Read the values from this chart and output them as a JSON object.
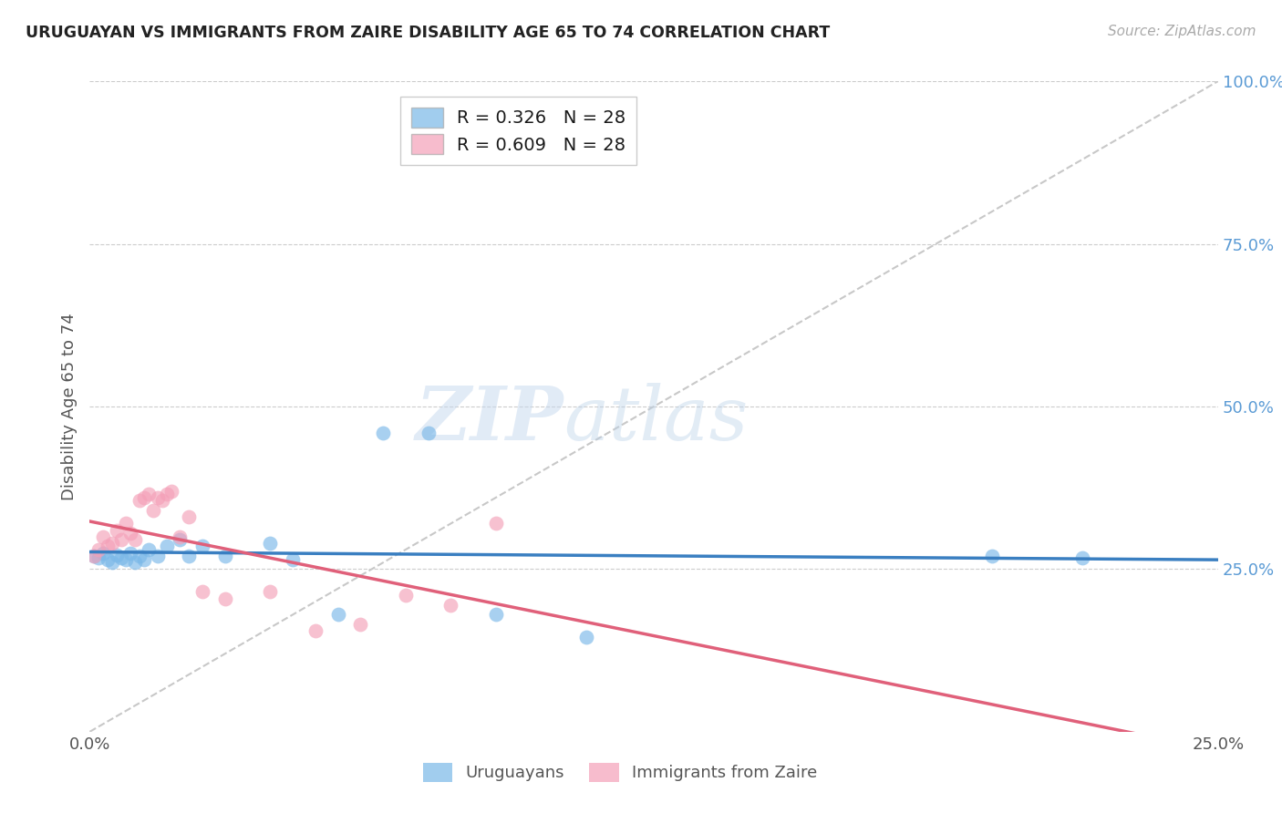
{
  "title": "URUGUAYAN VS IMMIGRANTS FROM ZAIRE DISABILITY AGE 65 TO 74 CORRELATION CHART",
  "source": "Source: ZipAtlas.com",
  "ylabel": "Disability Age 65 to 74",
  "x_min": 0.0,
  "x_max": 0.25,
  "y_min": 0.0,
  "y_max": 1.0,
  "x_tick_positions": [
    0.0,
    0.05,
    0.1,
    0.15,
    0.2,
    0.25
  ],
  "x_tick_labels": [
    "0.0%",
    "",
    "",
    "",
    "",
    "25.0%"
  ],
  "y_tick_positions": [
    0.25,
    0.5,
    0.75,
    1.0
  ],
  "y_tick_labels": [
    "25.0%",
    "50.0%",
    "75.0%",
    "100.0%"
  ],
  "uruguayan_color": "#7ab8e8",
  "zaire_color": "#f4a0b8",
  "regression_uruguayan_color": "#3a7fc1",
  "regression_zaire_color": "#e0607a",
  "diagonal_color": "#c8c8c8",
  "watermark_text": "ZIPatlas",
  "legend_label_uruguayans": "Uruguayans",
  "legend_label_zaire": "Immigrants from Zaire",
  "uruguayan_x": [
    0.001,
    0.002,
    0.003,
    0.004,
    0.005,
    0.006,
    0.007,
    0.008,
    0.009,
    0.01,
    0.011,
    0.012,
    0.013,
    0.015,
    0.017,
    0.02,
    0.022,
    0.025,
    0.03,
    0.04,
    0.045,
    0.055,
    0.065,
    0.075,
    0.09,
    0.11,
    0.2,
    0.22
  ],
  "uruguayan_y": [
    0.27,
    0.268,
    0.275,
    0.265,
    0.26,
    0.272,
    0.268,
    0.265,
    0.275,
    0.26,
    0.27,
    0.265,
    0.28,
    0.27,
    0.285,
    0.295,
    0.27,
    0.285,
    0.27,
    0.29,
    0.265,
    0.18,
    0.46,
    0.46,
    0.18,
    0.145,
    0.27,
    0.268
  ],
  "zaire_x": [
    0.001,
    0.002,
    0.003,
    0.004,
    0.005,
    0.006,
    0.007,
    0.008,
    0.009,
    0.01,
    0.011,
    0.012,
    0.013,
    0.014,
    0.015,
    0.016,
    0.017,
    0.018,
    0.02,
    0.022,
    0.025,
    0.03,
    0.04,
    0.05,
    0.06,
    0.07,
    0.08,
    0.09
  ],
  "zaire_y": [
    0.27,
    0.28,
    0.3,
    0.285,
    0.29,
    0.31,
    0.295,
    0.32,
    0.305,
    0.295,
    0.355,
    0.36,
    0.365,
    0.34,
    0.36,
    0.355,
    0.365,
    0.37,
    0.3,
    0.33,
    0.215,
    0.205,
    0.215,
    0.155,
    0.165,
    0.21,
    0.195,
    0.32
  ],
  "R_uruguayan": 0.326,
  "R_zaire": 0.609,
  "N_uruguayan": 28,
  "N_zaire": 28
}
